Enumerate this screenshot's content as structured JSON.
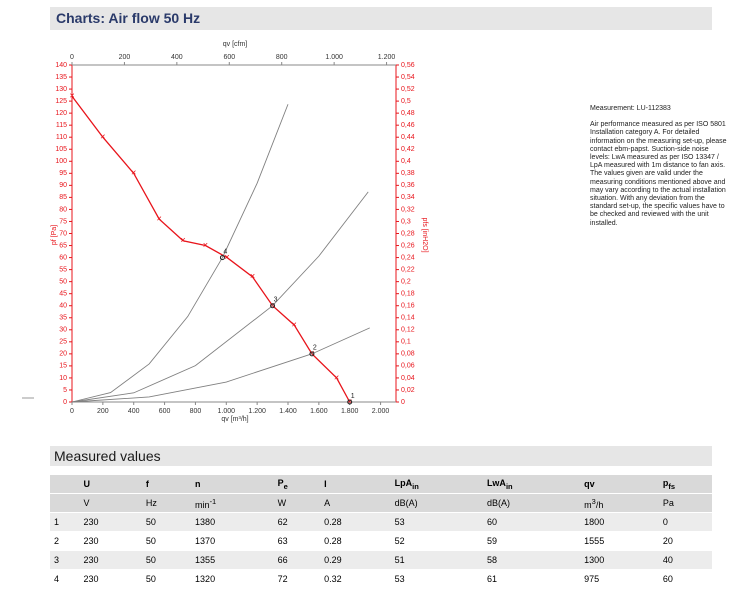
{
  "header": {
    "title": "Charts: Air flow 50 Hz"
  },
  "chart_data": {
    "type": "line",
    "y_label": "pf [Pa]",
    "y2_label": "pfs [inH2O]",
    "x_label": "qv [m³/h]",
    "x2_label": "qv [cfm]",
    "xlim": [
      0,
      2100
    ],
    "x2lim": [
      0,
      1236
    ],
    "ylim": [
      0,
      140
    ],
    "y2lim": [
      0,
      0.56
    ],
    "xticks": [
      0,
      200,
      400,
      600,
      800,
      {
        "value": 1000,
        "label": "1.000"
      },
      {
        "value": 1200,
        "label": "1.200"
      },
      {
        "value": 1400,
        "label": "1.400"
      },
      {
        "value": 1600,
        "label": "1.600"
      },
      {
        "value": 1800,
        "label": "1.800"
      },
      {
        "value": 2000,
        "label": "2.000"
      }
    ],
    "x2ticks": [
      0,
      200,
      400,
      600,
      800,
      {
        "value": 1000,
        "label": "1.000"
      },
      {
        "value": 1200,
        "label": "1.200"
      }
    ],
    "yticks": [
      0,
      5,
      10,
      15,
      20,
      25,
      30,
      35,
      40,
      45,
      50,
      55,
      60,
      65,
      70,
      75,
      80,
      85,
      90,
      95,
      100,
      105,
      110,
      115,
      120,
      125,
      130,
      135,
      140
    ],
    "y2ticks": [
      0,
      {
        "value": 0.02,
        "label": "0,02"
      },
      {
        "value": 0.04,
        "label": "0,04"
      },
      {
        "value": 0.06,
        "label": "0,06"
      },
      {
        "value": 0.08,
        "label": "0,08"
      },
      {
        "value": 0.1,
        "label": "0,1"
      },
      {
        "value": 0.12,
        "label": "0,12"
      },
      {
        "value": 0.14,
        "label": "0,14"
      },
      {
        "value": 0.16,
        "label": "0,16"
      },
      {
        "value": 0.18,
        "label": "0,18"
      },
      {
        "value": 0.2,
        "label": "0,2"
      },
      {
        "value": 0.22,
        "label": "0,22"
      },
      {
        "value": 0.24,
        "label": "0,24"
      },
      {
        "value": 0.26,
        "label": "0,26"
      },
      {
        "value": 0.28,
        "label": "0,28"
      },
      {
        "value": 0.3,
        "label": "0,3"
      },
      {
        "value": 0.32,
        "label": "0,32"
      },
      {
        "value": 0.34,
        "label": "0,34"
      },
      {
        "value": 0.36,
        "label": "0,36"
      },
      {
        "value": 0.38,
        "label": "0,38"
      },
      {
        "value": 0.4,
        "label": "0,4"
      },
      {
        "value": 0.42,
        "label": "0,42"
      },
      {
        "value": 0.44,
        "label": "0,44"
      },
      {
        "value": 0.46,
        "label": "0,46"
      },
      {
        "value": 0.48,
        "label": "0,48"
      },
      {
        "value": 0.5,
        "label": "0,5"
      },
      {
        "value": 0.52,
        "label": "0,52"
      },
      {
        "value": 0.54,
        "label": "0,54"
      },
      {
        "value": 0.56,
        "label": "0,56"
      }
    ],
    "series": [
      {
        "color": "#e8141b",
        "markers": true,
        "x": [
          0,
          200,
          400,
          565,
          720,
          865,
          1005,
          1170,
          1300,
          1440,
          1555,
          1715,
          1800
        ],
        "values": [
          127,
          110,
          95,
          76,
          67,
          65,
          60,
          52,
          40,
          32,
          20,
          10,
          0
        ]
      },
      {
        "color": "#808080",
        "markers": false,
        "x": [
          0,
          250,
          500,
          750,
          975,
          1200,
          1400
        ],
        "values": [
          0,
          3.9,
          15.8,
          35.5,
          60,
          90.9,
          123.7
        ]
      },
      {
        "color": "#808080",
        "markers": false,
        "x": [
          0,
          400,
          800,
          1300,
          1600,
          1920
        ],
        "values": [
          0,
          3.8,
          15.1,
          40,
          60.6,
          87.3
        ]
      },
      {
        "color": "#808080",
        "markers": false,
        "x": [
          0,
          500,
          1000,
          1555,
          1930
        ],
        "values": [
          0,
          2.1,
          8.3,
          20,
          30.8
        ]
      }
    ],
    "operating_points": [
      {
        "label": "1",
        "x": 1800,
        "value": 0
      },
      {
        "label": "2",
        "x": 1555,
        "value": 20
      },
      {
        "label": "3",
        "x": 1300,
        "value": 40
      },
      {
        "label": "4",
        "x": 975,
        "value": 60
      }
    ]
  },
  "notes": {
    "measurement": "Measurement: LU-112383",
    "lines": [
      "Air performance measured as per ISO 5801",
      "Installation category A. For detailed",
      "information on the measuring set-up, please",
      "contact ebm-papst. Suction-side noise",
      "levels: LwA measured as per ISO 13347 /",
      "LpA measured with 1m distance to fan axis.",
      "The values given are valid under the",
      "measuring conditions mentioned above and",
      "may vary according to the actual installation",
      "situation. With any deviation from the",
      "standard set-up, the specific values have to",
      "be checked and reviewed with the unit",
      "installed."
    ]
  },
  "table": {
    "title": "Measured values",
    "head": [
      {
        "text": "U"
      },
      {
        "text": "f"
      },
      {
        "text": "n"
      },
      {
        "text": "P",
        "sub": "e"
      },
      {
        "text": "I"
      },
      {
        "text": "LpA",
        "sub": "in"
      },
      {
        "text": "LwA",
        "sub": "in"
      },
      {
        "text": "qv"
      },
      {
        "text": "p",
        "sub": "fs"
      }
    ],
    "units": [
      {
        "text": "V"
      },
      {
        "text": "Hz"
      },
      {
        "text": "min",
        "sup": "-1"
      },
      {
        "text": "W"
      },
      {
        "text": "A"
      },
      {
        "text": "dB(A)"
      },
      {
        "text": "dB(A)"
      },
      {
        "text": "m",
        "sup": "3",
        "after": "/h"
      },
      {
        "text": "Pa"
      }
    ],
    "rows": [
      [
        "1",
        "230",
        "50",
        "1380",
        "62",
        "0.28",
        "53",
        "60",
        "1800",
        "0"
      ],
      [
        "2",
        "230",
        "50",
        "1370",
        "63",
        "0.28",
        "52",
        "59",
        "1555",
        "20"
      ],
      [
        "3",
        "230",
        "50",
        "1355",
        "66",
        "0.29",
        "51",
        "58",
        "1300",
        "40"
      ],
      [
        "4",
        "230",
        "50",
        "1320",
        "72",
        "0.32",
        "53",
        "61",
        "975",
        "60"
      ]
    ]
  }
}
